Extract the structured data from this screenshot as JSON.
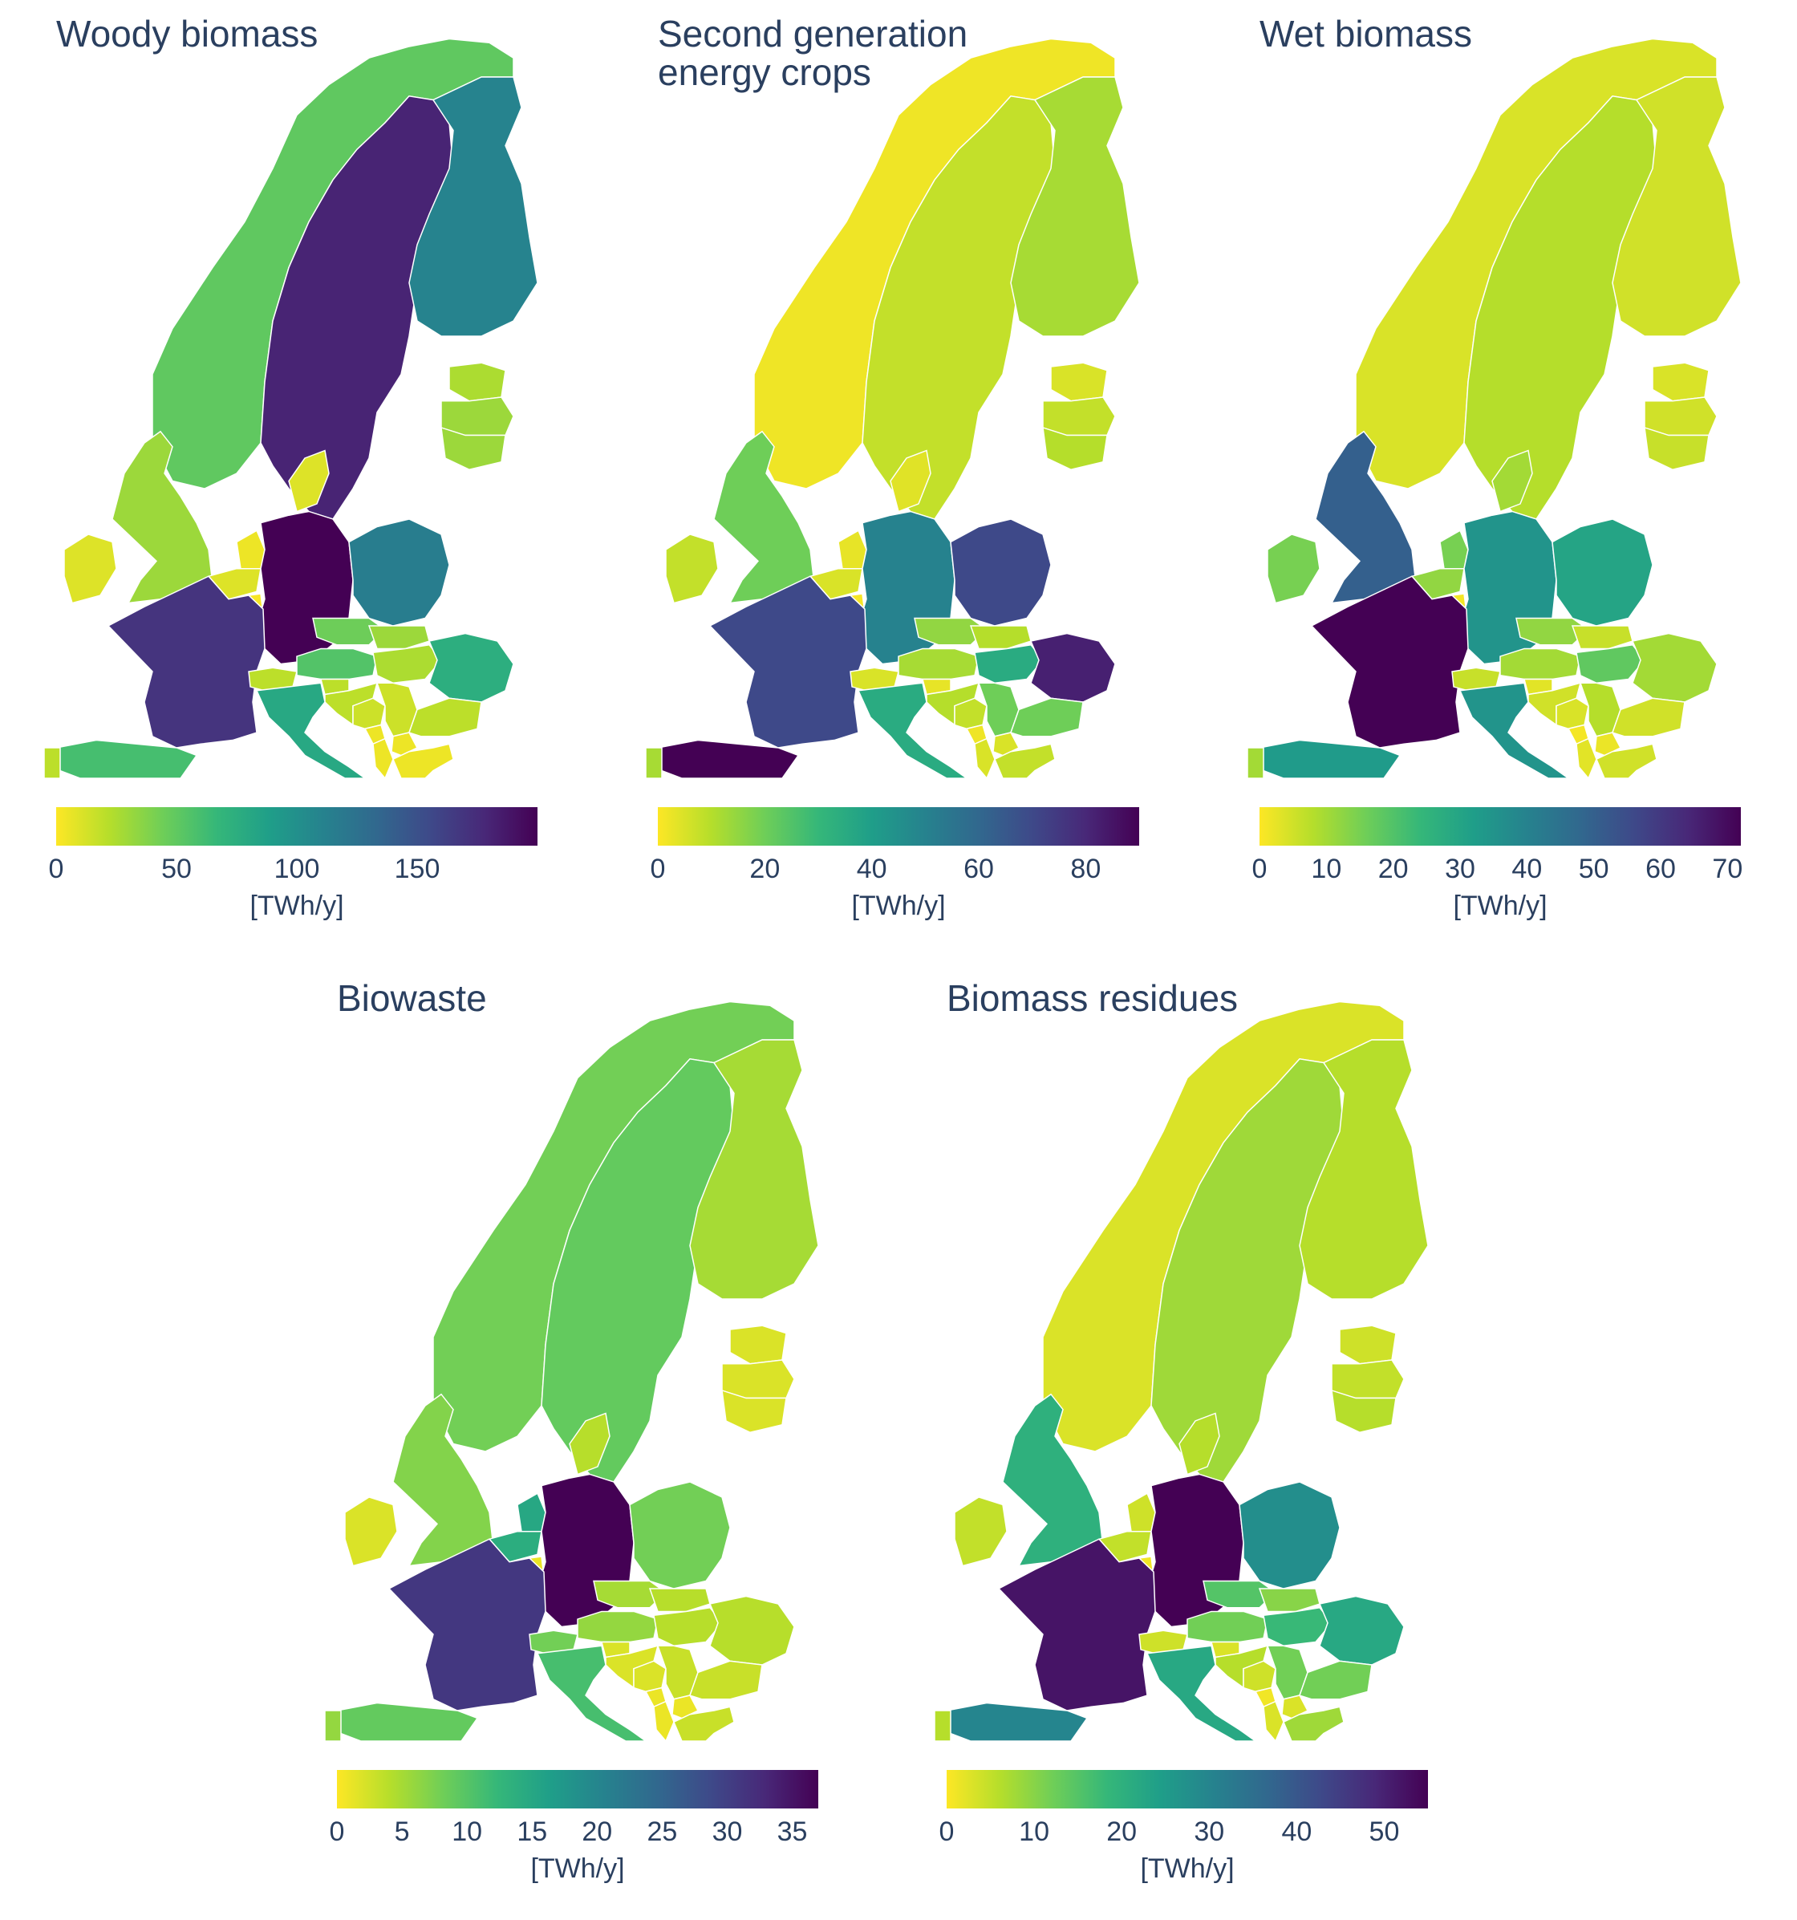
{
  "colorscale": [
    "#fde725",
    "#b5de2b",
    "#6ece58",
    "#35b779",
    "#1f9e89",
    "#26828e",
    "#31688e",
    "#3e4989",
    "#482878",
    "#440154"
  ],
  "panels": [
    {
      "title": "Woody biomass",
      "unit": "[TWh/y]",
      "cmax": 200,
      "ticks": [
        {
          "v": 0,
          "label": "0"
        },
        {
          "v": 50,
          "label": "50"
        },
        {
          "v": 100,
          "label": "100"
        },
        {
          "v": 150,
          "label": "150"
        }
      ],
      "values": {
        "NO": 50,
        "SE": 180,
        "FI": 110,
        "EE": 25,
        "LV": 30,
        "LT": 30,
        "DK": 10,
        "GB": 30,
        "IE": 10,
        "NL": 5,
        "BE": 10,
        "LU": 2,
        "DE": 200,
        "PL": 115,
        "FR": 170,
        "CH": 20,
        "AT": 55,
        "CZ": 45,
        "SK": 30,
        "HU": 25,
        "RO": 75,
        "SI": 20,
        "HR": 20,
        "BA": 15,
        "RS": 15,
        "ME": 5,
        "AL": 5,
        "MK": 5,
        "BG": 20,
        "GR": 5,
        "IT": 80,
        "ES": 60,
        "PT": 20
      }
    },
    {
      "title": "Second generation\nenergy crops",
      "unit": "[TWh/y]",
      "cmax": 90,
      "ticks": [
        {
          "v": 0,
          "label": "0"
        },
        {
          "v": 20,
          "label": "20"
        },
        {
          "v": 40,
          "label": "40"
        },
        {
          "v": 60,
          "label": "60"
        },
        {
          "v": 80,
          "label": "80"
        }
      ],
      "values": {
        "NO": 2,
        "SE": 8,
        "FI": 12,
        "EE": 5,
        "LV": 8,
        "LT": 10,
        "DK": 4,
        "GB": 20,
        "IE": 8,
        "NL": 3,
        "BE": 5,
        "LU": 1,
        "DE": 50,
        "PL": 70,
        "FR": 70,
        "CH": 5,
        "AT": 12,
        "CZ": 15,
        "SK": 10,
        "HU": 35,
        "RO": 82,
        "SI": 3,
        "HR": 10,
        "BA": 8,
        "RS": 20,
        "ME": 2,
        "AL": 5,
        "MK": 5,
        "BG": 20,
        "GR": 8,
        "IT": 35,
        "ES": 90,
        "PT": 12
      }
    },
    {
      "title": "Wet biomass",
      "unit": "[TWh/y]",
      "cmax": 72,
      "ticks": [
        {
          "v": 0,
          "label": "0"
        },
        {
          "v": 10,
          "label": "10"
        },
        {
          "v": 20,
          "label": "20"
        },
        {
          "v": 30,
          "label": "30"
        },
        {
          "v": 40,
          "label": "40"
        },
        {
          "v": 50,
          "label": "50"
        },
        {
          "v": 60,
          "label": "60"
        },
        {
          "v": 70,
          "label": "70"
        }
      ],
      "values": {
        "NO": 4,
        "SE": 8,
        "FI": 5,
        "EE": 4,
        "LV": 5,
        "LT": 6,
        "DK": 10,
        "GB": 50,
        "IE": 15,
        "NL": 15,
        "BE": 12,
        "LU": 1,
        "DE": 35,
        "PL": 30,
        "FR": 72,
        "CH": 6,
        "AT": 10,
        "CZ": 12,
        "SK": 6,
        "HU": 18,
        "RO": 10,
        "SI": 3,
        "HR": 5,
        "BA": 4,
        "RS": 8,
        "ME": 1,
        "AL": 3,
        "MK": 2,
        "BG": 5,
        "GR": 5,
        "IT": 35,
        "ES": 33,
        "PT": 10
      }
    },
    {
      "title": "Biowaste",
      "unit": "[TWh/y]",
      "cmax": 37,
      "ticks": [
        {
          "v": 0,
          "label": "0"
        },
        {
          "v": 5,
          "label": "5"
        },
        {
          "v": 10,
          "label": "10"
        },
        {
          "v": 15,
          "label": "15"
        },
        {
          "v": 20,
          "label": "20"
        },
        {
          "v": 25,
          "label": "25"
        },
        {
          "v": 30,
          "label": "30"
        },
        {
          "v": 35,
          "label": "35"
        }
      ],
      "values": {
        "NO": 8,
        "SE": 9,
        "FI": 5,
        "EE": 2,
        "LV": 2,
        "LT": 2,
        "DK": 4,
        "GB": 7,
        "IE": 2,
        "NL": 15,
        "BE": 14,
        "LU": 1,
        "DE": 37,
        "PL": 8,
        "FR": 31,
        "CH": 8,
        "AT": 6,
        "CZ": 5,
        "SK": 4,
        "HU": 4,
        "RO": 4,
        "SI": 2,
        "HR": 2,
        "BA": 2,
        "RS": 3,
        "ME": 1,
        "AL": 1,
        "MK": 1,
        "BG": 3,
        "GR": 3,
        "IT": 11,
        "ES": 9,
        "PT": 6
      }
    },
    {
      "title": "Biomass residues",
      "unit": "[TWh/y]",
      "cmax": 55,
      "ticks": [
        {
          "v": 0,
          "label": "0"
        },
        {
          "v": 10,
          "label": "10"
        },
        {
          "v": 20,
          "label": "20"
        },
        {
          "v": 30,
          "label": "30"
        },
        {
          "v": 40,
          "label": "40"
        },
        {
          "v": 50,
          "label": "50"
        }
      ],
      "values": {
        "NO": 3,
        "SE": 8,
        "FI": 6,
        "EE": 4,
        "LV": 5,
        "LT": 6,
        "DK": 6,
        "GB": 20,
        "IE": 5,
        "NL": 4,
        "BE": 5,
        "LU": 1,
        "DE": 55,
        "PL": 28,
        "FR": 52,
        "CH": 4,
        "AT": 12,
        "CZ": 15,
        "SK": 10,
        "HU": 18,
        "RO": 22,
        "SI": 3,
        "HR": 6,
        "BA": 4,
        "RS": 12,
        "ME": 1,
        "AL": 3,
        "MK": 3,
        "BG": 12,
        "GR": 8,
        "IT": 22,
        "ES": 30,
        "PT": 6
      }
    }
  ]
}
